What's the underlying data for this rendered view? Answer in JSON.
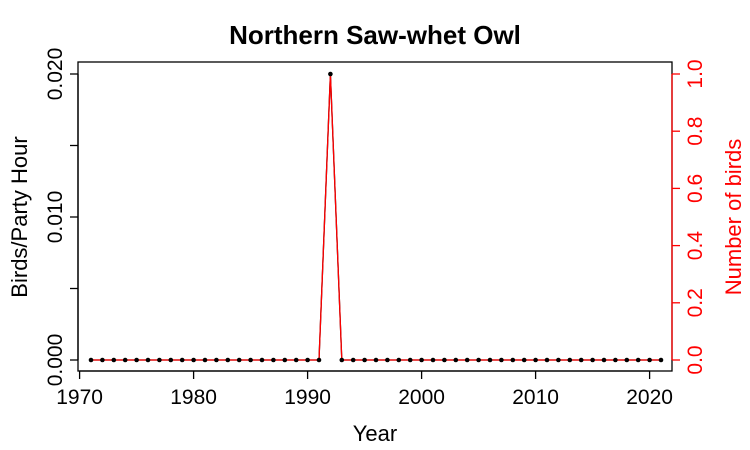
{
  "chart_data": {
    "type": "line",
    "title": "Northern Saw-whet Owl",
    "xlabel": "Year",
    "ylabel": "Birds/Party Hour",
    "y2label": "Number of birds",
    "xlim": [
      1970,
      2023
    ],
    "ylim": [
      0,
      0.02
    ],
    "y2lim": [
      0,
      1.0
    ],
    "x_ticks": [
      1970,
      1980,
      1990,
      2000,
      2010,
      2020
    ],
    "y_ticks": [
      "0.000",
      "0.010",
      "0.020"
    ],
    "y_minor_ticks": [
      0.005,
      0.015
    ],
    "y2_ticks": [
      "0.0",
      "0.2",
      "0.4",
      "0.6",
      "0.8",
      "1.0"
    ],
    "colors": {
      "birds_per_party_hour": "#000000",
      "number_of_birds": "#ff0000",
      "y2_axis": "#ff0000"
    },
    "x": [
      1971,
      1972,
      1973,
      1974,
      1975,
      1976,
      1977,
      1978,
      1979,
      1980,
      1981,
      1982,
      1983,
      1984,
      1985,
      1986,
      1987,
      1988,
      1989,
      1990,
      1991,
      1992,
      1993,
      1994,
      1995,
      1996,
      1997,
      1998,
      1999,
      2000,
      2001,
      2002,
      2003,
      2004,
      2005,
      2006,
      2007,
      2008,
      2009,
      2010,
      2011,
      2012,
      2013,
      2014,
      2015,
      2016,
      2017,
      2018,
      2019,
      2020,
      2021
    ],
    "series": [
      {
        "axis": "left",
        "values": [
          0,
          0,
          0,
          0,
          0,
          0,
          0,
          0,
          0,
          0,
          0,
          0,
          0,
          0,
          0,
          0,
          0,
          0,
          0,
          0,
          0,
          0.02,
          0,
          0,
          0,
          0,
          0,
          0,
          0,
          0,
          0,
          0,
          0,
          0,
          0,
          0,
          0,
          0,
          0,
          0,
          0,
          0,
          0,
          0,
          0,
          0,
          0,
          0,
          0,
          0,
          0
        ]
      },
      {
        "axis": "right",
        "values": [
          0,
          0,
          0,
          0,
          0,
          0,
          0,
          0,
          0,
          0,
          0,
          0,
          0,
          0,
          0,
          0,
          0,
          0,
          0,
          0,
          0,
          1,
          0,
          0,
          0,
          0,
          0,
          0,
          0,
          0,
          0,
          0,
          0,
          0,
          0,
          0,
          0,
          0,
          0,
          0,
          0,
          0,
          0,
          0,
          0,
          0,
          0,
          0,
          0,
          0,
          0
        ]
      }
    ]
  }
}
